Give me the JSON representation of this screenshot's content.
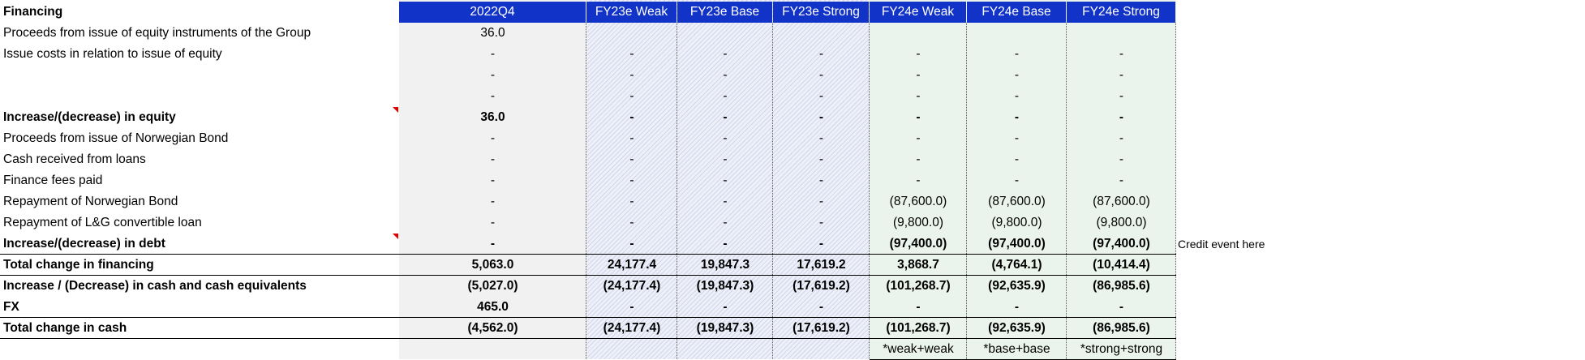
{
  "colors": {
    "header_bg": "#1233c8",
    "actual_col_bg": "#f1f1f1",
    "fy23_col_bg": "#e7e9f6",
    "fy24_col_bg": "#eaf4ec",
    "comment_marker": "#e00000"
  },
  "headers": {
    "section": "Financing",
    "columns": [
      "2022Q4",
      "FY23e Weak",
      "FY23e Base",
      "FY23e Strong",
      "FY24e Weak",
      "FY24e Base",
      "FY24e Strong"
    ]
  },
  "rows": [
    {
      "label": "Proceeds from issue of equity instruments of the Group",
      "values": [
        "36.0",
        "",
        "",
        "",
        "",
        "",
        ""
      ]
    },
    {
      "label": "Issue costs in relation to issue of equity",
      "values": [
        "-",
        "-",
        "-",
        "-",
        "-",
        "-",
        "-"
      ]
    },
    {
      "label": "",
      "values": [
        "-",
        "-",
        "-",
        "-",
        "-",
        "-",
        "-"
      ]
    },
    {
      "label": "",
      "values": [
        "-",
        "-",
        "-",
        "-",
        "-",
        "-",
        "-"
      ]
    },
    {
      "label": "Increase/(decrease) in equity",
      "values": [
        "36.0",
        "-",
        "-",
        "-",
        "-",
        "-",
        "-"
      ]
    },
    {
      "label": "Proceeds from issue of Norwegian Bond",
      "values": [
        "-",
        "-",
        "-",
        "-",
        "-",
        "-",
        "-"
      ]
    },
    {
      "label": "Cash received from loans",
      "values": [
        "-",
        "-",
        "-",
        "-",
        "-",
        "-",
        "-"
      ]
    },
    {
      "label": "Finance fees paid",
      "values": [
        "-",
        "-",
        "-",
        "-",
        "-",
        "-",
        "-"
      ]
    },
    {
      "label": "Repayment of Norwegian Bond",
      "values": [
        "-",
        "-",
        "-",
        "-",
        "(87,600.0)",
        "(87,600.0)",
        "(87,600.0)"
      ]
    },
    {
      "label": "Repayment of L&G convertible loan",
      "values": [
        "-",
        "-",
        "-",
        "-",
        "(9,800.0)",
        "(9,800.0)",
        "(9,800.0)"
      ]
    },
    {
      "label": "Increase/(decrease) in debt",
      "values": [
        "-",
        "-",
        "-",
        "-",
        "(97,400.0)",
        "(97,400.0)",
        "(97,400.0)"
      ],
      "note": "Credit event here"
    },
    {
      "label": "Total change in financing",
      "values": [
        "5,063.0",
        "24,177.4",
        "19,847.3",
        "17,619.2",
        "3,868.7",
        "(4,764.1)",
        "(10,414.4)"
      ]
    },
    {
      "label": "Increase / (Decrease) in cash and cash equivalents",
      "values": [
        "(5,027.0)",
        "(24,177.4)",
        "(19,847.3)",
        "(17,619.2)",
        "(101,268.7)",
        "(92,635.9)",
        "(86,985.6)"
      ]
    },
    {
      "label": "FX",
      "values": [
        "465.0",
        "-",
        "-",
        "-",
        "-",
        "-",
        "-"
      ]
    },
    {
      "label": "Total change in cash",
      "values": [
        "(4,562.0)",
        "(24,177.4)",
        "(19,847.3)",
        "(17,619.2)",
        "(101,268.7)",
        "(92,635.9)",
        "(86,985.6)"
      ]
    },
    {
      "label": "",
      "values": [
        "",
        "",
        "",
        "",
        "*weak+weak",
        "*base+base",
        "*strong+strong"
      ]
    }
  ]
}
